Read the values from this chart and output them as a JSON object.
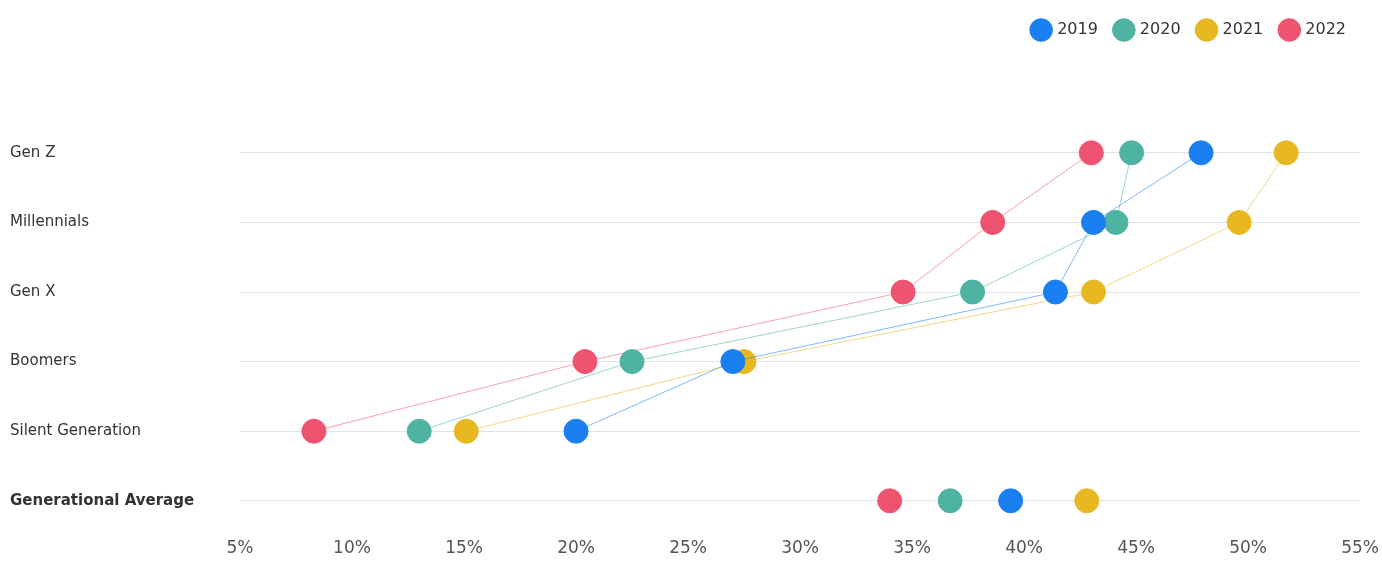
{
  "chart_data": {
    "type": "line",
    "orientation": "horizontal",
    "categories": [
      "Gen Z",
      "Millennials",
      "Gen X",
      "Boomers",
      "Silent Generation",
      "Generational Average"
    ],
    "series": [
      {
        "name": "2019",
        "color": "#1a7ff0",
        "values": [
          47.9,
          43.1,
          41.4,
          27.0,
          20.0,
          null
        ]
      },
      {
        "name": "2020",
        "color": "#4fb3a4",
        "values": [
          44.8,
          44.1,
          37.7,
          22.5,
          13.0,
          null
        ]
      },
      {
        "name": "2021",
        "color": "#e8b820",
        "values": [
          51.7,
          49.6,
          43.1,
          27.5,
          15.1,
          null
        ]
      },
      {
        "name": "2022",
        "color": "#ee5470",
        "values": [
          43.0,
          38.6,
          34.6,
          20.4,
          8.3,
          null
        ]
      },
      {
        "type": "scatter",
        "color": "#1a7ff0",
        "values": [
          null,
          null,
          null,
          null,
          null,
          39.4
        ]
      },
      {
        "type": "scatter",
        "color": "#4fb3a4",
        "values": [
          null,
          null,
          null,
          null,
          null,
          36.7
        ]
      },
      {
        "type": "scatter",
        "color": "#e8b820",
        "values": [
          null,
          null,
          null,
          null,
          null,
          42.8
        ]
      },
      {
        "type": "scatter",
        "color": "#ee5470",
        "values": [
          null,
          null,
          null,
          null,
          null,
          34.0
        ]
      }
    ],
    "xlim": [
      5,
      55
    ],
    "xticks": [
      {
        "value": 5,
        "label": "5%"
      },
      {
        "value": 10,
        "label": "10%"
      },
      {
        "value": 15,
        "label": "15%"
      },
      {
        "value": 20,
        "label": "20%"
      },
      {
        "value": 25,
        "label": "25%"
      },
      {
        "value": 30,
        "label": "30%"
      },
      {
        "value": 35,
        "label": "35%"
      },
      {
        "value": 40,
        "label": "40%"
      },
      {
        "value": 45,
        "label": "45%"
      },
      {
        "value": 50,
        "label": "50%"
      },
      {
        "value": 55,
        "label": "55%"
      }
    ],
    "grid": "y",
    "legend": "top right",
    "marker": "circle",
    "line_style": "solid"
  }
}
